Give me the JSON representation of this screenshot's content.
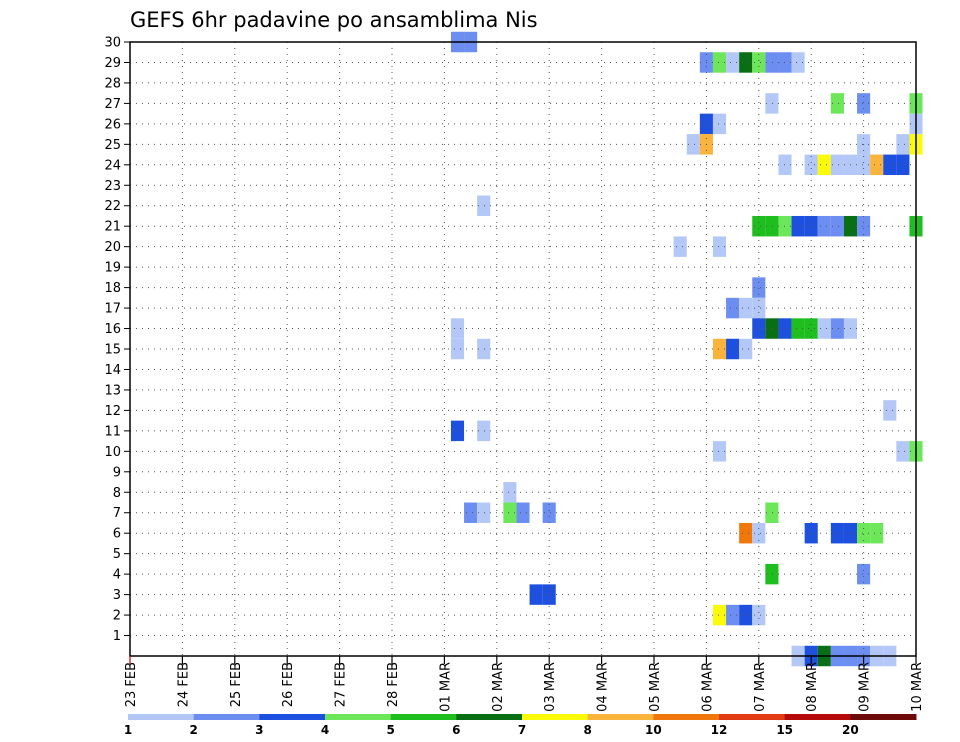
{
  "chart_data": {
    "type": "heatmap",
    "title": "GEFS 6hr padavine po ansamblima Nis",
    "x_labels": [
      "23 FEB",
      "24 FEB",
      "25 FEB",
      "26 FEB",
      "27 FEB",
      "28 FEB",
      "01 MAR",
      "02 MAR",
      "03 MAR",
      "04 MAR",
      "05 MAR",
      "06 MAR",
      "07 MAR",
      "08 MAR",
      "09 MAR",
      "10 MAR"
    ],
    "x_steps_per_label": 4,
    "y_labels": [
      "1",
      "2",
      "3",
      "4",
      "5",
      "6",
      "7",
      "8",
      "9",
      "10",
      "11",
      "12",
      "13",
      "14",
      "15",
      "16",
      "17",
      "18",
      "19",
      "20",
      "21",
      "22",
      "23",
      "24",
      "25",
      "26",
      "27",
      "28",
      "29",
      "30"
    ],
    "y_range": [
      0,
      30
    ],
    "grid": true,
    "legend": {
      "placement": "bottom",
      "colors": [
        "#b4c8f8",
        "#6c8ef0",
        "#1e50e0",
        "#6ee65a",
        "#1ebe1e",
        "#0a6e14",
        "#fafa0a",
        "#fab43c",
        "#f0780a",
        "#e13c14",
        "#b40a0a",
        "#6e0a0a"
      ],
      "labels": [
        "1",
        "2",
        "3",
        "4",
        "5",
        "6",
        "7",
        "8",
        "10",
        "12",
        "15",
        "20"
      ]
    },
    "cells": [
      {
        "row": 30,
        "col": 25,
        "cls": 1
      },
      {
        "row": 30,
        "col": 26,
        "cls": 1
      },
      {
        "row": 29,
        "col": 44,
        "cls": 1
      },
      {
        "row": 29,
        "col": 45,
        "cls": 3
      },
      {
        "row": 29,
        "col": 46,
        "cls": 0
      },
      {
        "row": 29,
        "col": 47,
        "cls": 5
      },
      {
        "row": 29,
        "col": 48,
        "cls": 3
      },
      {
        "row": 29,
        "col": 49,
        "cls": 1
      },
      {
        "row": 29,
        "col": 50,
        "cls": 1
      },
      {
        "row": 29,
        "col": 51,
        "cls": 0
      },
      {
        "row": 27,
        "col": 49,
        "cls": 0
      },
      {
        "row": 27,
        "col": 54,
        "cls": 3
      },
      {
        "row": 27,
        "col": 56,
        "cls": 1
      },
      {
        "row": 27,
        "col": 60,
        "cls": 3
      },
      {
        "row": 26,
        "col": 44,
        "cls": 2
      },
      {
        "row": 26,
        "col": 45,
        "cls": 0
      },
      {
        "row": 26,
        "col": 60,
        "cls": 0
      },
      {
        "row": 25,
        "col": 43,
        "cls": 0
      },
      {
        "row": 25,
        "col": 44,
        "cls": 7
      },
      {
        "row": 25,
        "col": 56,
        "cls": 0
      },
      {
        "row": 25,
        "col": 59,
        "cls": 0
      },
      {
        "row": 25,
        "col": 60,
        "cls": 6
      },
      {
        "row": 24,
        "col": 50,
        "cls": 0
      },
      {
        "row": 24,
        "col": 52,
        "cls": 0
      },
      {
        "row": 24,
        "col": 53,
        "cls": 6
      },
      {
        "row": 24,
        "col": 54,
        "cls": 0
      },
      {
        "row": 24,
        "col": 55,
        "cls": 0
      },
      {
        "row": 24,
        "col": 56,
        "cls": 0
      },
      {
        "row": 24,
        "col": 57,
        "cls": 7
      },
      {
        "row": 24,
        "col": 58,
        "cls": 2
      },
      {
        "row": 24,
        "col": 59,
        "cls": 2
      },
      {
        "row": 22,
        "col": 27,
        "cls": 0
      },
      {
        "row": 21,
        "col": 48,
        "cls": 4
      },
      {
        "row": 21,
        "col": 49,
        "cls": 4
      },
      {
        "row": 21,
        "col": 50,
        "cls": 3
      },
      {
        "row": 21,
        "col": 51,
        "cls": 2
      },
      {
        "row": 21,
        "col": 52,
        "cls": 2
      },
      {
        "row": 21,
        "col": 53,
        "cls": 1
      },
      {
        "row": 21,
        "col": 54,
        "cls": 1
      },
      {
        "row": 21,
        "col": 55,
        "cls": 5
      },
      {
        "row": 21,
        "col": 56,
        "cls": 1
      },
      {
        "row": 21,
        "col": 60,
        "cls": 4
      },
      {
        "row": 20,
        "col": 42,
        "cls": 0
      },
      {
        "row": 20,
        "col": 45,
        "cls": 0
      },
      {
        "row": 18,
        "col": 48,
        "cls": 1
      },
      {
        "row": 17,
        "col": 46,
        "cls": 1
      },
      {
        "row": 17,
        "col": 47,
        "cls": 0
      },
      {
        "row": 17,
        "col": 48,
        "cls": 0
      },
      {
        "row": 16,
        "col": 25,
        "cls": 0
      },
      {
        "row": 16,
        "col": 48,
        "cls": 2
      },
      {
        "row": 16,
        "col": 49,
        "cls": 5
      },
      {
        "row": 16,
        "col": 50,
        "cls": 2
      },
      {
        "row": 16,
        "col": 51,
        "cls": 4
      },
      {
        "row": 16,
        "col": 52,
        "cls": 4
      },
      {
        "row": 16,
        "col": 53,
        "cls": 0
      },
      {
        "row": 16,
        "col": 54,
        "cls": 1
      },
      {
        "row": 16,
        "col": 55,
        "cls": 0
      },
      {
        "row": 15,
        "col": 25,
        "cls": 0
      },
      {
        "row": 15,
        "col": 27,
        "cls": 0
      },
      {
        "row": 15,
        "col": 45,
        "cls": 7
      },
      {
        "row": 15,
        "col": 46,
        "cls": 2
      },
      {
        "row": 15,
        "col": 47,
        "cls": 0
      },
      {
        "row": 12,
        "col": 58,
        "cls": 0
      },
      {
        "row": 11,
        "col": 25,
        "cls": 2
      },
      {
        "row": 11,
        "col": 27,
        "cls": 0
      },
      {
        "row": 10,
        "col": 45,
        "cls": 0
      },
      {
        "row": 10,
        "col": 59,
        "cls": 0
      },
      {
        "row": 10,
        "col": 60,
        "cls": 3
      },
      {
        "row": 8,
        "col": 29,
        "cls": 0
      },
      {
        "row": 7,
        "col": 26,
        "cls": 1
      },
      {
        "row": 7,
        "col": 27,
        "cls": 0
      },
      {
        "row": 7,
        "col": 29,
        "cls": 3
      },
      {
        "row": 7,
        "col": 30,
        "cls": 1
      },
      {
        "row": 7,
        "col": 32,
        "cls": 1
      },
      {
        "row": 7,
        "col": 49,
        "cls": 3
      },
      {
        "row": 6,
        "col": 47,
        "cls": 8
      },
      {
        "row": 6,
        "col": 48,
        "cls": 0
      },
      {
        "row": 6,
        "col": 52,
        "cls": 2
      },
      {
        "row": 6,
        "col": 54,
        "cls": 2
      },
      {
        "row": 6,
        "col": 55,
        "cls": 2
      },
      {
        "row": 6,
        "col": 56,
        "cls": 3
      },
      {
        "row": 6,
        "col": 57,
        "cls": 3
      },
      {
        "row": 4,
        "col": 49,
        "cls": 4
      },
      {
        "row": 4,
        "col": 56,
        "cls": 1
      },
      {
        "row": 3,
        "col": 31,
        "cls": 2
      },
      {
        "row": 3,
        "col": 32,
        "cls": 2
      },
      {
        "row": 2,
        "col": 45,
        "cls": 6
      },
      {
        "row": 2,
        "col": 46,
        "cls": 1
      },
      {
        "row": 2,
        "col": 47,
        "cls": 2
      },
      {
        "row": 2,
        "col": 48,
        "cls": 0
      },
      {
        "row": 0,
        "col": 51,
        "cls": 0
      },
      {
        "row": 0,
        "col": 52,
        "cls": 2
      },
      {
        "row": 0,
        "col": 53,
        "cls": 5
      },
      {
        "row": 0,
        "col": 54,
        "cls": 1
      },
      {
        "row": 0,
        "col": 55,
        "cls": 1
      },
      {
        "row": 0,
        "col": 56,
        "cls": 1
      },
      {
        "row": 0,
        "col": 57,
        "cls": 0
      },
      {
        "row": 0,
        "col": 58,
        "cls": 0
      }
    ]
  }
}
